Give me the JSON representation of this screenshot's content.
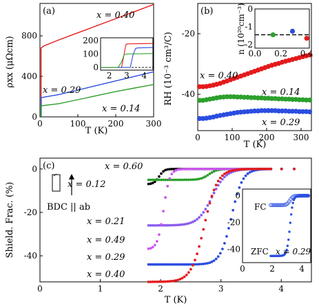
{
  "chart_data": [
    {
      "id": "a",
      "panel_label": "(a)",
      "type": "line",
      "xlabel": "T (K)",
      "ylabel": "ρxx (μΩcm)",
      "xlim": [
        0,
        300
      ],
      "ylim": [
        0,
        1120
      ],
      "xticks": [
        "0",
        "100",
        "200",
        "300"
      ],
      "yticks": [
        "0",
        "400",
        "800"
      ],
      "series": [
        {
          "name": "x = 0.40",
          "color": "#e41a1c",
          "x": [
            2.0,
            2.9,
            3.0,
            10,
            50,
            100,
            150,
            200,
            250,
            300
          ],
          "y": [
            0,
            0,
            680,
            700,
            760,
            830,
            900,
            970,
            1040,
            1110
          ]
        },
        {
          "name": "x = 0.29",
          "color": "#2b4de0",
          "x": [
            2.0,
            3.4,
            3.5,
            10,
            50,
            100,
            150,
            200,
            250,
            300
          ],
          "y": [
            0,
            0,
            190,
            195,
            220,
            265,
            310,
            355,
            400,
            445
          ]
        },
        {
          "name": "x = 0.14",
          "color": "#2ca02c",
          "x": [
            2.0,
            2.8,
            2.9,
            10,
            50,
            100,
            150,
            200,
            250,
            300
          ],
          "y": [
            0,
            0,
            110,
            112,
            130,
            170,
            210,
            250,
            285,
            320
          ]
        }
      ],
      "inset": {
        "xlim": [
          1.5,
          4.5
        ],
        "ylim": [
          -20,
          220
        ],
        "xticks": [
          "2",
          "3",
          "4"
        ],
        "yticks": [
          "0",
          "100",
          "200"
        ],
        "series": [
          {
            "color": "#e41a1c",
            "x": [
              1.5,
              2.7,
              2.85,
              2.95,
              3.05,
              4.5
            ],
            "y": [
              0,
              0,
              100,
              170,
              175,
              178
            ]
          },
          {
            "color": "#2b4de0",
            "x": [
              1.5,
              3.2,
              3.35,
              3.5,
              3.6,
              4.5
            ],
            "y": [
              0,
              0,
              90,
              140,
              145,
              148
            ]
          },
          {
            "color": "#2ca02c",
            "x": [
              1.5,
              2.5,
              2.7,
              2.85,
              3.0,
              4.5
            ],
            "y": [
              0,
              0,
              40,
              95,
              100,
              103
            ]
          }
        ]
      }
    },
    {
      "id": "b",
      "panel_label": "(b)",
      "type": "scatter",
      "xlabel": "T (K)",
      "ylabel": "RH (10⁻³ cm³/C)",
      "xlim": [
        0,
        330
      ],
      "ylim": [
        -52,
        -10
      ],
      "xticks": [
        "0",
        "100",
        "200",
        "300"
      ],
      "yticks": [
        "-40",
        "-20"
      ],
      "series": [
        {
          "name": "x = 0.40",
          "color": "#e41a1c",
          "x": [
            5,
            15,
            25,
            35,
            45,
            55,
            65,
            75,
            85,
            95,
            105,
            115,
            125,
            135,
            145,
            155,
            165,
            175,
            185,
            195,
            205,
            215,
            225,
            235,
            245,
            255,
            265,
            275,
            285,
            295,
            305,
            315,
            325
          ],
          "y": [
            -37.5,
            -37.5,
            -37.4,
            -37.2,
            -37.0,
            -36.7,
            -36.4,
            -36.0,
            -35.6,
            -35.2,
            -34.8,
            -34.4,
            -34.0,
            -33.6,
            -33.2,
            -32.8,
            -32.4,
            -32.0,
            -31.6,
            -31.2,
            -30.8,
            -30.4,
            -30.1,
            -29.8,
            -29.4,
            -29.1,
            -28.8,
            -28.5,
            -28.2,
            -27.9,
            -27.6,
            -27.3,
            -27.0
          ]
        },
        {
          "name": "x = 0.14",
          "color": "#2ca02c",
          "x": [
            5,
            15,
            25,
            35,
            45,
            55,
            65,
            75,
            85,
            95,
            105,
            115,
            125,
            135,
            145,
            155,
            165,
            175,
            185,
            195,
            205,
            215,
            225,
            235,
            245,
            255,
            265,
            275,
            285,
            295,
            305,
            315,
            325
          ],
          "y": [
            -42.0,
            -42.0,
            -41.8,
            -41.6,
            -41.4,
            -41.2,
            -41.0,
            -40.9,
            -40.8,
            -40.8,
            -40.8,
            -40.9,
            -40.9,
            -41.0,
            -41.0,
            -41.1,
            -41.1,
            -41.2,
            -41.2,
            -41.3,
            -41.3,
            -41.4,
            -41.4,
            -41.5,
            -41.5,
            -41.6,
            -41.6,
            -41.7,
            -41.7,
            -41.8,
            -41.8,
            -41.9,
            -41.9
          ]
        },
        {
          "name": "x = 0.29",
          "color": "#2b4de0",
          "x": [
            5,
            15,
            25,
            35,
            45,
            55,
            65,
            75,
            85,
            95,
            105,
            115,
            125,
            135,
            145,
            155,
            165,
            175,
            185,
            195,
            205,
            215,
            225,
            235,
            245,
            255,
            265,
            275,
            285,
            295,
            305,
            315,
            325
          ],
          "y": [
            -48.0,
            -48.0,
            -47.9,
            -47.7,
            -47.5,
            -47.2,
            -47.0,
            -46.8,
            -46.6,
            -46.4,
            -46.2,
            -46.0,
            -45.9,
            -45.8,
            -45.7,
            -45.6,
            -45.5,
            -45.5,
            -45.4,
            -45.4,
            -45.4,
            -45.4,
            -45.4,
            -45.5,
            -45.5,
            -45.5,
            -45.6,
            -45.6,
            -45.6,
            -45.7,
            -45.7,
            -45.7,
            -45.8
          ]
        }
      ],
      "inset": {
        "xlim": [
          0,
          0.42
        ],
        "ylim": [
          -2.2,
          0
        ],
        "xticks": [
          "0.0",
          "0.2",
          "0.4"
        ],
        "yticks": [
          "-2",
          "-1",
          "0"
        ],
        "ylabel": "n (10²⁰cm⁻³)",
        "dashed_y": -1.45,
        "points": [
          {
            "x": 0.14,
            "y": -1.45,
            "color": "#2ca02c"
          },
          {
            "x": 0.29,
            "y": -1.25,
            "color": "#2b4de0"
          },
          {
            "x": 0.4,
            "y": -1.65,
            "color": "#e41a1c"
          }
        ]
      }
    },
    {
      "id": "c",
      "panel_label": "(c)",
      "type": "scatter",
      "xlabel": "T (K)",
      "ylabel": "Shield. Frac. (%)",
      "xlim": [
        0,
        4.5
      ],
      "ylim": [
        -52,
        5
      ],
      "xticks": [
        "0",
        "1",
        "2",
        "3",
        "4"
      ],
      "yticks": [
        "0",
        "-20",
        "-40"
      ],
      "annotation": "BDC || ab",
      "series": [
        {
          "name": "x = 0.60",
          "color": "#000000",
          "transition": [
            1.85,
            2.1,
            -7
          ]
        },
        {
          "name": "x = 0.12",
          "color": "#2ca02c",
          "transition": [
            2.6,
            3.0,
            -5
          ]
        },
        {
          "name": "x = 0.21",
          "color": "#8a5cf0",
          "transition": [
            2.5,
            3.2,
            -26
          ]
        },
        {
          "name": "x = 0.49",
          "color": "#cc55ee",
          "transition": [
            1.9,
            2.2,
            -37
          ]
        },
        {
          "name": "x = 0.29",
          "color": "#2b4de0",
          "transition": [
            2.9,
            3.45,
            -44
          ]
        },
        {
          "name": "x = 0.40",
          "color": "#e41a1c",
          "transition": [
            2.4,
            3.05,
            -52
          ]
        }
      ],
      "inset": {
        "xlim": [
          0,
          4.6
        ],
        "ylim": [
          -50,
          5
        ],
        "xticks": [
          "0",
          "2",
          "4"
        ],
        "yticks": [
          "0",
          "-20",
          "-40"
        ],
        "labels": [
          "FC",
          "ZFC",
          "x = 0.29"
        ]
      }
    }
  ]
}
